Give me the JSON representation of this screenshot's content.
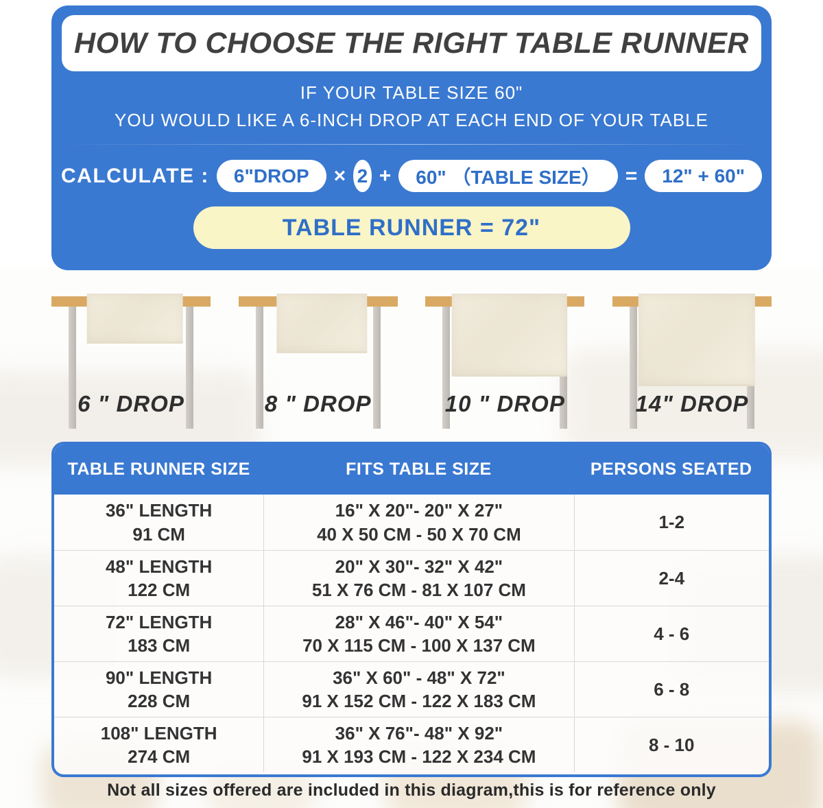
{
  "colors": {
    "panel_blue": "#3a79d1",
    "result_yellow": "#faf5c6",
    "pill_text_blue": "#2f6fc8",
    "title_text": "#404040",
    "tabletop_tan": "#d9a964",
    "runner_cream": "#f1ebdc"
  },
  "header": {
    "title": "HOW TO CHOOSE THE RIGHT TABLE RUNNER",
    "line1": "IF YOUR TABLE SIZE 60\"",
    "line2": "YOU WOULD LIKE A 6-INCH DROP AT EACH END OF YOUR TABLE"
  },
  "calc": {
    "label": "CALCULATE :",
    "drop": "6\"DROP",
    "times": "×",
    "multiplier": "2",
    "plus": "+",
    "table_size": "60\" （TABLE SIZE）",
    "equals": "=",
    "sum": "12\" + 60\"",
    "result": "TABLE RUNNER = 72\""
  },
  "drops": {
    "d1": "6 \" DROP",
    "d2": "8 \" DROP",
    "d3": "10 \" DROP",
    "d4": "14\" DROP"
  },
  "size_table": {
    "headers": {
      "col1": "TABLE RUNNER SIZE",
      "col2": "FITS TABLE SIZE",
      "col3": "PERSONS SEATED"
    },
    "rows": [
      {
        "len_in": "36\" LENGTH",
        "len_cm": "91 CM",
        "fits_in": "16\" X 20\"- 20\" X 27\"",
        "fits_cm": "40 X 50 CM - 50 X 70 CM",
        "persons": "1-2"
      },
      {
        "len_in": "48\" LENGTH",
        "len_cm": "122 CM",
        "fits_in": "20\" X 30\"- 32\" X 42\"",
        "fits_cm": "51 X 76 CM - 81 X 107 CM",
        "persons": "2-4"
      },
      {
        "len_in": "72\" LENGTH",
        "len_cm": "183 CM",
        "fits_in": "28\" X 46\"- 40\" X 54\"",
        "fits_cm": "70 X 115 CM - 100 X 137 CM",
        "persons": "4 - 6"
      },
      {
        "len_in": "90\" LENGTH",
        "len_cm": "228 CM",
        "fits_in": "36\" X 60\" - 48\" X 72\"",
        "fits_cm": "91 X 152 CM - 122 X 183 CM",
        "persons": "6 - 8"
      },
      {
        "len_in": "108\" LENGTH",
        "len_cm": "274 CM",
        "fits_in": "36\" X 76\"- 48\" X 92\"",
        "fits_cm": "91 X 193 CM - 122 X 234 CM",
        "persons": "8 - 10"
      }
    ]
  },
  "footer": {
    "note": "Not all sizes offered are included in this diagram,this is for reference only"
  }
}
